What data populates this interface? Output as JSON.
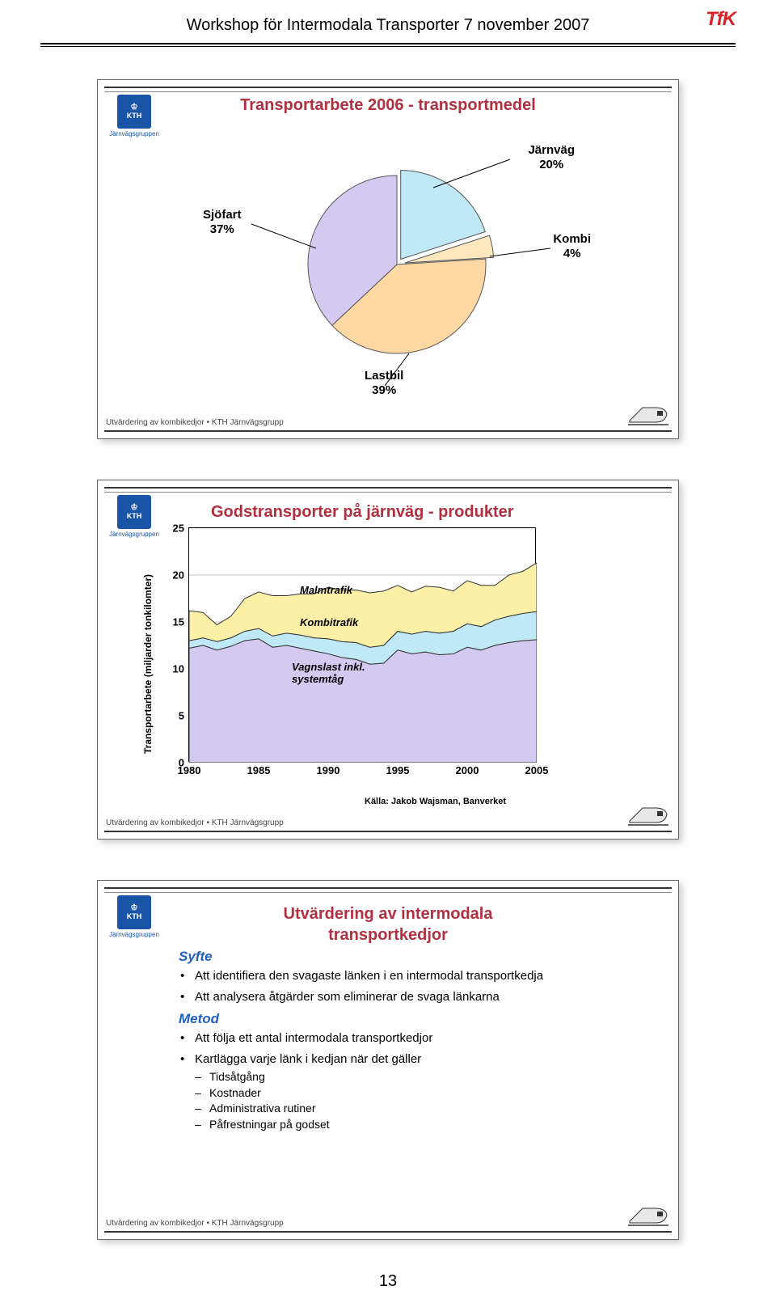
{
  "header": {
    "title": "Workshop för Intermodala Transporter 7 november 2007",
    "logo_text": "TfK",
    "logo_color": "#d8232a"
  },
  "kth": {
    "label": "KTH",
    "sublabel": "Järnvägsgruppen",
    "bg": "#1954a6"
  },
  "slide_footer": "Utvärdering av kombikedjor • KTH Järnvägsgrupp",
  "page_number": "13",
  "pie": {
    "title": "Transportarbete 2006 - transportmedel",
    "colors": {
      "jarnvag": "#bfe9f7",
      "kombi": "#ffe8c0",
      "lastbil": "#ffd8a3",
      "sjofart": "#d4c9f0",
      "stroke": "#555555"
    },
    "labels": {
      "jarnvag": {
        "name": "Järnväg",
        "value": "20%"
      },
      "kombi": {
        "name": "Kombi",
        "value": "4%"
      },
      "lastbil": {
        "name": "Lastbil",
        "value": "39%"
      },
      "sjofart": {
        "name": "Sjöfart",
        "value": "37%"
      }
    },
    "slices_deg": {
      "jarnvag_start": -90,
      "jarnvag_end": -18,
      "kombi_end": -3.6,
      "lastbil_end": 136.8,
      "sjofart_end": 270
    }
  },
  "area": {
    "title": "Godstransporter på järnväg - produkter",
    "y_label": "Transportarbete (miljarder tonkilomter)",
    "y_ticks": [
      0,
      5,
      10,
      15,
      20,
      25
    ],
    "x_ticks": [
      1980,
      1985,
      1990,
      1995,
      2000,
      2005
    ],
    "series": {
      "vagnslast": {
        "label": "Vagnslast inkl.\nsystemtåg",
        "color": "#d4c9f0",
        "values": [
          12.2,
          12.5,
          12.0,
          12.4,
          13.0,
          13.2,
          12.3,
          12.5,
          12.2,
          11.9,
          11.6,
          11.2,
          11.0,
          10.5,
          10.6,
          12.0,
          11.6,
          11.8,
          11.5,
          11.6,
          12.3,
          12.0,
          12.5,
          12.8,
          13.0,
          13.1
        ]
      },
      "kombi": {
        "label": "Kombitrafik",
        "color": "#bfe9f7",
        "values": [
          13.0,
          13.3,
          12.9,
          13.3,
          14.0,
          14.3,
          13.5,
          13.8,
          13.6,
          13.3,
          13.2,
          12.9,
          12.8,
          12.3,
          12.5,
          14.0,
          13.7,
          14.0,
          13.8,
          14.0,
          14.8,
          14.5,
          15.2,
          15.6,
          15.9,
          16.1
        ]
      },
      "malm": {
        "label": "Malmtrafik",
        "color": "#fff0a8",
        "values": [
          16.2,
          16.0,
          14.7,
          15.6,
          17.5,
          18.2,
          17.8,
          17.8,
          18.0,
          18.0,
          18.7,
          18.4,
          18.4,
          18.1,
          18.3,
          18.9,
          18.2,
          18.8,
          18.7,
          18.3,
          19.4,
          18.9,
          18.9,
          20.0,
          20.4,
          21.3
        ]
      }
    },
    "grid_color": "#888888",
    "bg": "#ffffff",
    "source": "Källa: Jakob Wajsman, Banverket"
  },
  "text_slide": {
    "title_line1": "Utvärdering av intermodala",
    "title_line2": "transportkedjor",
    "syfte_head": "Syfte",
    "syfte_bullets": [
      "Att identifiera den svagaste länken i en intermodal transportkedja",
      "Att analysera åtgärder som eliminerar de svaga länkarna"
    ],
    "metod_head": "Metod",
    "metod_bullets": [
      "Att följa ett antal intermodala transportkedjor",
      "Kartlägga varje länk i kedjan när det gäller"
    ],
    "metod_sub": [
      "Tidsåtgång",
      "Kostnader",
      "Administrativa rutiner",
      "Påfrestningar på godset"
    ]
  }
}
